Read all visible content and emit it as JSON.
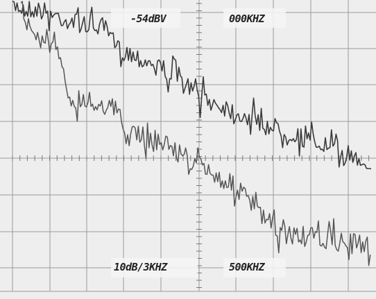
{
  "readouts": {
    "reference_level": "-54dBV",
    "center_frequency": "000KHZ",
    "scale": "10dB/3KHZ",
    "span": "500KHZ"
  }
}
